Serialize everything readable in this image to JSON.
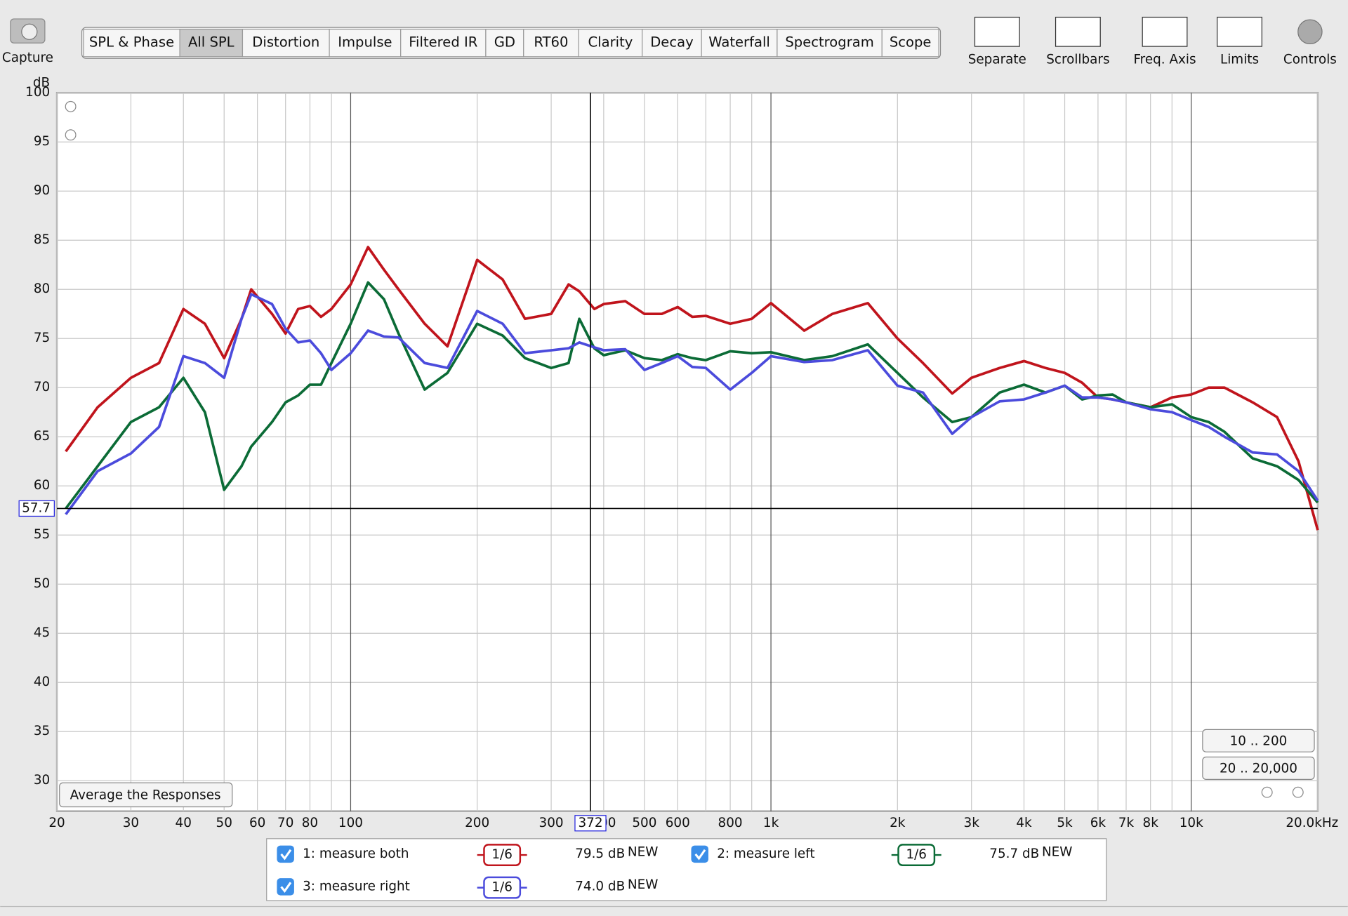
{
  "toolbar": {
    "capture": "Capture",
    "tabs": [
      "SPL & Phase",
      "All SPL",
      "Distortion",
      "Impulse",
      "Filtered IR",
      "GD",
      "RT60",
      "Clarity",
      "Decay",
      "Waterfall",
      "Spectrogram",
      "Scope"
    ],
    "tools": [
      "Separate",
      "Scrollbars",
      "Freq. Axis",
      "Limits",
      "Controls"
    ]
  },
  "chart_data": {
    "type": "line",
    "y_label": "dB",
    "xscale": "log",
    "xlim": [
      20,
      20000
    ],
    "ylim": [
      26.9,
      100
    ],
    "xticks": [
      20,
      30,
      40,
      50,
      60,
      70,
      80,
      100,
      200,
      300,
      400,
      500,
      600,
      800,
      {
        "value": 1000,
        "label": "1k"
      },
      {
        "value": 2000,
        "label": "2k"
      },
      {
        "value": 3000,
        "label": "3k"
      },
      {
        "value": 4000,
        "label": "4k"
      },
      {
        "value": 5000,
        "label": "5k"
      },
      {
        "value": 6000,
        "label": "6k"
      },
      {
        "value": 7000,
        "label": "7k"
      },
      {
        "value": 8000,
        "label": "8k"
      },
      {
        "value": 10000,
        "label": "10k"
      },
      {
        "value": 20000,
        "label": "20.0kHz"
      }
    ],
    "xgrid_minor": [
      90,
      700,
      900,
      9000
    ],
    "yticks": [
      30,
      35,
      40,
      45,
      50,
      55,
      60,
      65,
      70,
      75,
      80,
      85,
      90,
      95,
      100
    ],
    "grid": true,
    "cursor": {
      "x": 372,
      "y": 57.7
    },
    "x": [
      21,
      25,
      30,
      35,
      40,
      45,
      50,
      55,
      58,
      65,
      70,
      75,
      80,
      85,
      90,
      100,
      110,
      120,
      130,
      150,
      170,
      200,
      230,
      260,
      300,
      330,
      350,
      380,
      400,
      450,
      500,
      550,
      600,
      650,
      700,
      800,
      900,
      1000,
      1200,
      1400,
      1700,
      2000,
      2300,
      2700,
      3000,
      3500,
      4000,
      4500,
      5000,
      5500,
      6000,
      6500,
      7000,
      8000,
      9000,
      10000,
      11000,
      12000,
      14000,
      16000,
      18000,
      20000
    ],
    "series": [
      {
        "name": "1: measure both",
        "color": "#c0141c",
        "smoothing": "1/6",
        "level": "79.5 dB",
        "badge": "NEW",
        "values": [
          63.5,
          68,
          71,
          72.5,
          78,
          76.5,
          73,
          77,
          80,
          77.5,
          75.5,
          78,
          78.3,
          77.2,
          78,
          80.5,
          84.3,
          82,
          80,
          76.5,
          74.2,
          83,
          81,
          77,
          77.5,
          80.5,
          79.8,
          78,
          78.5,
          78.8,
          77.5,
          77.5,
          78.2,
          77.2,
          77.3,
          76.5,
          77,
          78.6,
          75.8,
          77.5,
          78.6,
          75,
          72.5,
          69.4,
          71,
          72,
          72.7,
          72,
          71.5,
          70.5,
          69,
          68.8,
          68.5,
          68,
          69,
          69.3,
          70,
          70,
          68.5,
          67,
          62.5,
          55.5
        ]
      },
      {
        "name": "2: measure left",
        "color": "#0b6b36",
        "smoothing": "1/6",
        "level": "75.7 dB",
        "badge": "NEW",
        "values": [
          57.7,
          62,
          66.5,
          68,
          71,
          67.5,
          59.6,
          62,
          64,
          66.5,
          68.5,
          69.2,
          70.3,
          70.3,
          72.5,
          76.5,
          80.7,
          79,
          75.5,
          69.8,
          71.5,
          76.5,
          75.3,
          73,
          72,
          72.5,
          77,
          74,
          73.3,
          73.8,
          73,
          72.8,
          73.4,
          73,
          72.8,
          73.7,
          73.5,
          73.6,
          72.8,
          73.2,
          74.4,
          71.5,
          69,
          66.5,
          67,
          69.5,
          70.3,
          69.5,
          70.2,
          68.8,
          69.2,
          69.3,
          68.5,
          68,
          68.3,
          67,
          66.5,
          65.5,
          62.8,
          62,
          60.6,
          58.3
        ]
      },
      {
        "name": "3: measure right",
        "color": "#4b4bdc",
        "smoothing": "1/6",
        "level": "74.0 dB",
        "badge": "NEW",
        "values": [
          57.1,
          61.5,
          63.3,
          66,
          73.2,
          72.5,
          71,
          77,
          79.5,
          78.5,
          76,
          74.6,
          74.8,
          73.5,
          71.8,
          73.5,
          75.8,
          75.2,
          75.1,
          72.5,
          72,
          77.8,
          76.5,
          73.5,
          73.8,
          74,
          74.6,
          74.1,
          73.8,
          73.9,
          71.8,
          72.5,
          73.2,
          72.1,
          72,
          69.8,
          71.5,
          73.2,
          72.6,
          72.8,
          73.8,
          70.2,
          69.5,
          65.3,
          67,
          68.6,
          68.8,
          69.5,
          70.2,
          69,
          69,
          68.8,
          68.5,
          67.8,
          67.5,
          66.7,
          66,
          65,
          63.4,
          63.2,
          61.5,
          58.5
        ]
      }
    ]
  },
  "buttons": {
    "average": "Average the Responses",
    "range_low": "10 .. 200",
    "range_full": "20 .. 20,000"
  }
}
